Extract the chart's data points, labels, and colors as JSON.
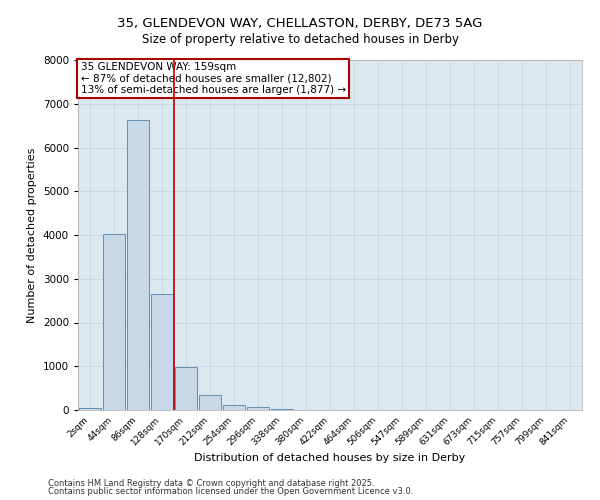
{
  "title": "35, GLENDEVON WAY, CHELLASTON, DERBY, DE73 5AG",
  "subtitle": "Size of property relative to detached houses in Derby",
  "xlabel": "Distribution of detached houses by size in Derby",
  "ylabel": "Number of detached properties",
  "bar_labels": [
    "2sqm",
    "44sqm",
    "86sqm",
    "128sqm",
    "170sqm",
    "212sqm",
    "254sqm",
    "296sqm",
    "338sqm",
    "380sqm",
    "422sqm",
    "464sqm",
    "506sqm",
    "547sqm",
    "589sqm",
    "631sqm",
    "673sqm",
    "715sqm",
    "757sqm",
    "799sqm",
    "841sqm"
  ],
  "bar_heights": [
    50,
    4030,
    6620,
    2650,
    980,
    340,
    120,
    75,
    30,
    0,
    0,
    0,
    0,
    0,
    0,
    0,
    0,
    0,
    0,
    0,
    0
  ],
  "bar_color": "#c8d8e8",
  "bar_edge_color": "#6090b8",
  "bar_edge_width": 0.7,
  "red_line_index": 3.5,
  "ylim": [
    0,
    8000
  ],
  "yticks": [
    0,
    1000,
    2000,
    3000,
    4000,
    5000,
    6000,
    7000,
    8000
  ],
  "grid_color": "#c8d4dc",
  "background_color": "#dce8f0",
  "annotation_text": "35 GLENDEVON WAY: 159sqm\n← 87% of detached houses are smaller (12,802)\n13% of semi-detached houses are larger (1,877) →",
  "annotation_box_edge_color": "#aa0000",
  "footer1": "Contains HM Land Registry data © Crown copyright and database right 2025.",
  "footer2": "Contains public sector information licensed under the Open Government Licence v3.0."
}
